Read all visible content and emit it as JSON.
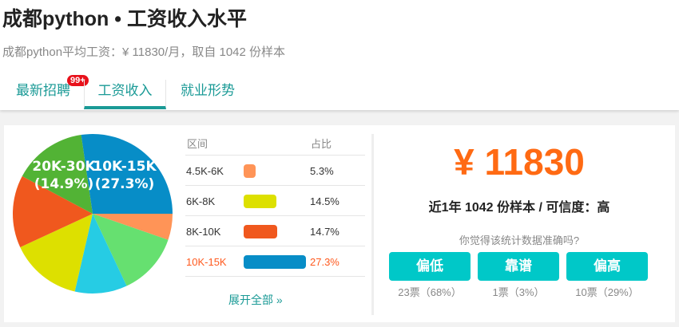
{
  "header": {
    "title": "成都python • 工资收入水平",
    "subtitle": "成都python平均工资：¥ 11830/月，取自 1042 份样本"
  },
  "tabs": [
    {
      "label": "最新招聘",
      "badge": "99+"
    },
    {
      "label": "工资收入",
      "active": true
    },
    {
      "label": "就业形势"
    }
  ],
  "chart_data": {
    "type": "pie",
    "slices": [
      {
        "name": "4.5K-6K",
        "value": 5.3,
        "color": "#ff9457"
      },
      {
        "name": "",
        "value": 12.7,
        "color": "#66e070"
      },
      {
        "name": "",
        "value": 10.6,
        "color": "#26cce4"
      },
      {
        "name": "6K-8K",
        "value": 14.5,
        "color": "#dde000"
      },
      {
        "name": "8K-10K",
        "value": 14.7,
        "color": "#f0581e"
      },
      {
        "name": "20K-30K",
        "value": 14.9,
        "color": "#52b335"
      },
      {
        "name": "10K-15K",
        "value": 27.3,
        "color": "#078dc7"
      }
    ],
    "labels": [
      {
        "text": "20K-30K",
        "pct": "(14.9%)"
      },
      {
        "text": "10K-15K",
        "pct": "(27.3%)"
      }
    ]
  },
  "table": {
    "headers": [
      "区间",
      "占比"
    ],
    "rows": [
      {
        "range": "4.5K-6K",
        "pct": "5.3%",
        "value": 5.3,
        "color": "#ff9457"
      },
      {
        "range": "6K-8K",
        "pct": "14.5%",
        "value": 14.5,
        "color": "#dde000"
      },
      {
        "range": "8K-10K",
        "pct": "14.7%",
        "value": 14.7,
        "color": "#f0581e"
      },
      {
        "range": "10K-15K",
        "pct": "27.3%",
        "value": 27.3,
        "color": "#078dc7",
        "highlight": true
      }
    ],
    "more": "展开全部 »"
  },
  "summary": {
    "salary": "¥ 11830",
    "samples": "近1年 1042 份样本 / 可信度：高",
    "question": "你觉得该统计数据准确吗?"
  },
  "votes": [
    {
      "label": "偏低",
      "count": "23票（68%）"
    },
    {
      "label": "靠谱",
      "count": "1票（3%）"
    },
    {
      "label": "偏高",
      "count": "10票（29%）"
    }
  ],
  "colors": {
    "accent": "#1a9a96",
    "salary": "#ff6a13",
    "button": "#00c8c8"
  }
}
